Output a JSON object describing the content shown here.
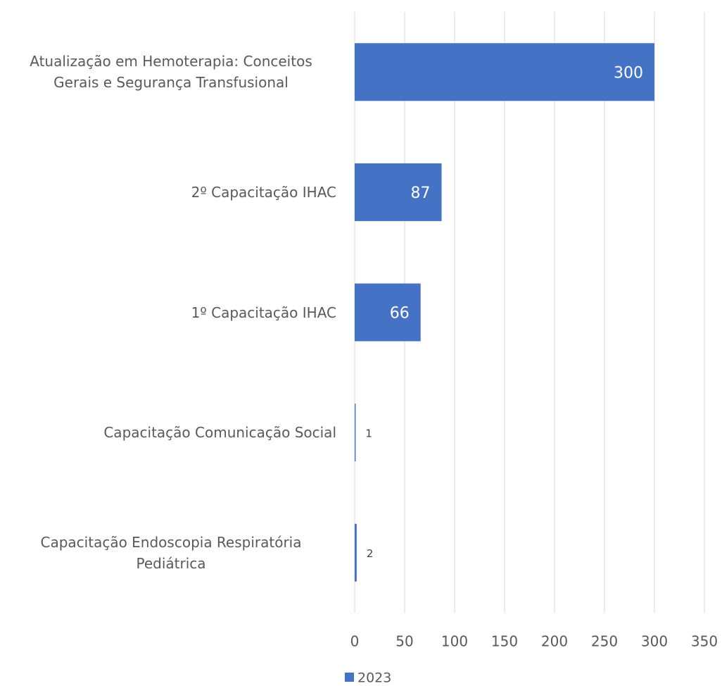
{
  "chart_data": {
    "type": "barh",
    "categories": [
      "Atualização em Hemoterapia: Conceitos Gerais e Segurança Transfusional",
      "2º  Capacitação IHAC",
      "1º  Capacitação IHAC",
      "Capacitação Comunicação Social",
      "Capacitação Endoscopia Respiratória Pediátrica"
    ],
    "series": [
      {
        "name": "2023",
        "color": "#4472c4",
        "values": [
          300,
          87,
          66,
          1,
          2
        ]
      }
    ],
    "xlim": [
      0,
      350
    ],
    "xticks": [
      0,
      50,
      100,
      150,
      200,
      250,
      300,
      350
    ],
    "grid": true,
    "legend": "bottom"
  }
}
